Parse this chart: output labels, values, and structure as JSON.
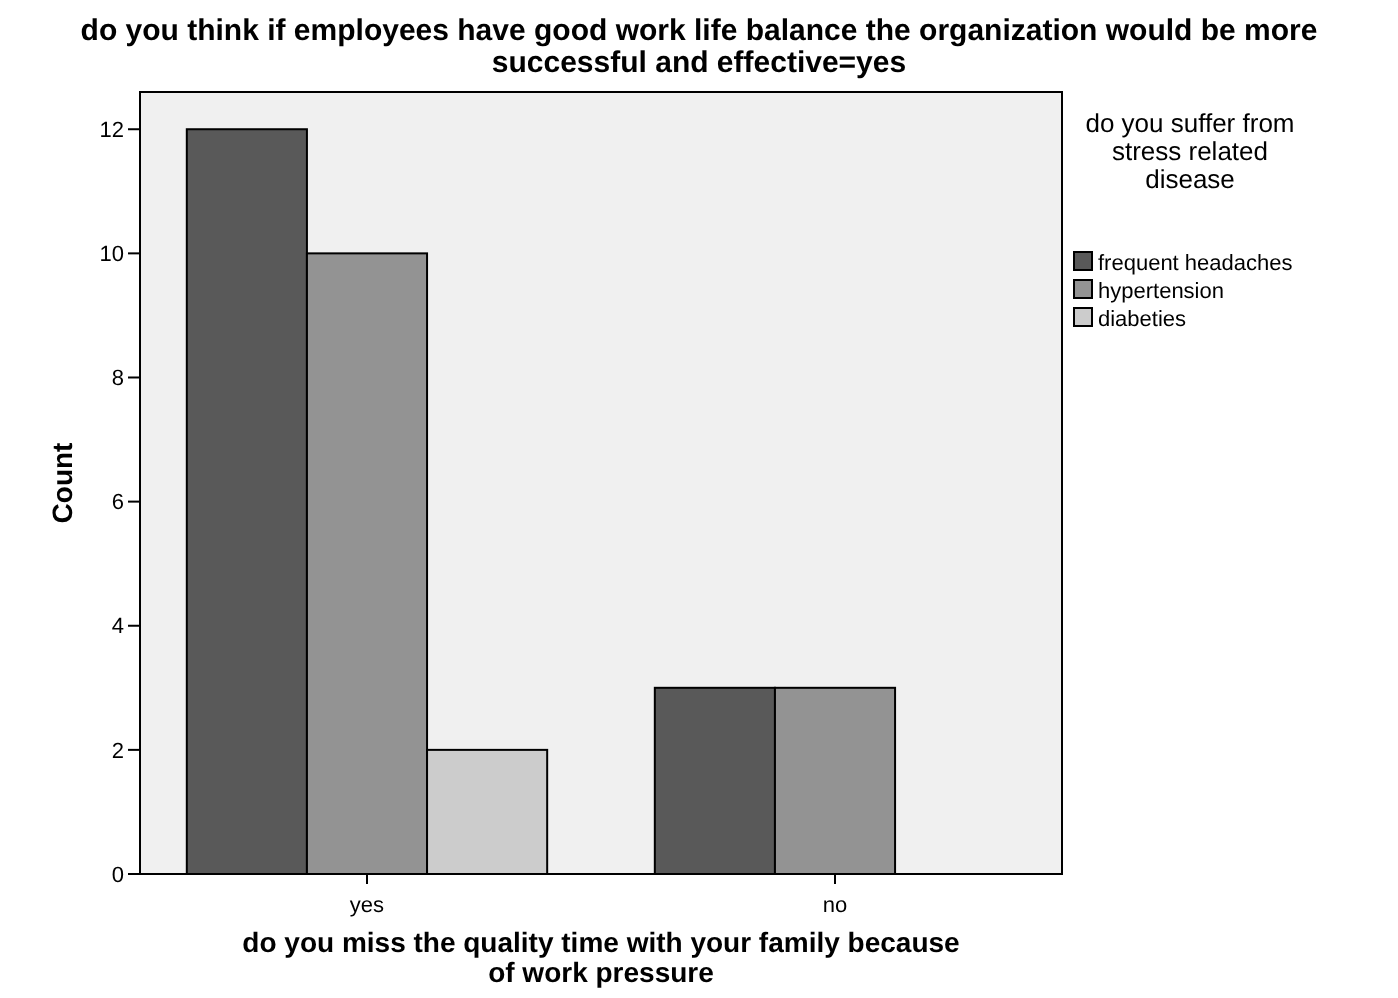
{
  "chart_data": {
    "type": "bar",
    "title": "do you think if employees have good work life balance the organization would be more successful and effective=yes",
    "xlabel": "do you miss the quality time with your family because of work pressure",
    "ylabel": "Count",
    "legend_title": "do you suffer from stress related disease",
    "categories": [
      "yes",
      "no"
    ],
    "series": [
      {
        "name": "frequent headaches",
        "color": "#595959",
        "values": [
          12,
          3
        ]
      },
      {
        "name": "hypertension",
        "color": "#939393",
        "values": [
          10,
          3
        ]
      },
      {
        "name": "diabeties",
        "color": "#cccccc",
        "values": [
          2,
          null
        ]
      }
    ],
    "ylim": [
      0,
      12.6
    ],
    "yticks": [
      0,
      2,
      4,
      6,
      8,
      10,
      12
    ],
    "grid": false,
    "legend": "right"
  }
}
